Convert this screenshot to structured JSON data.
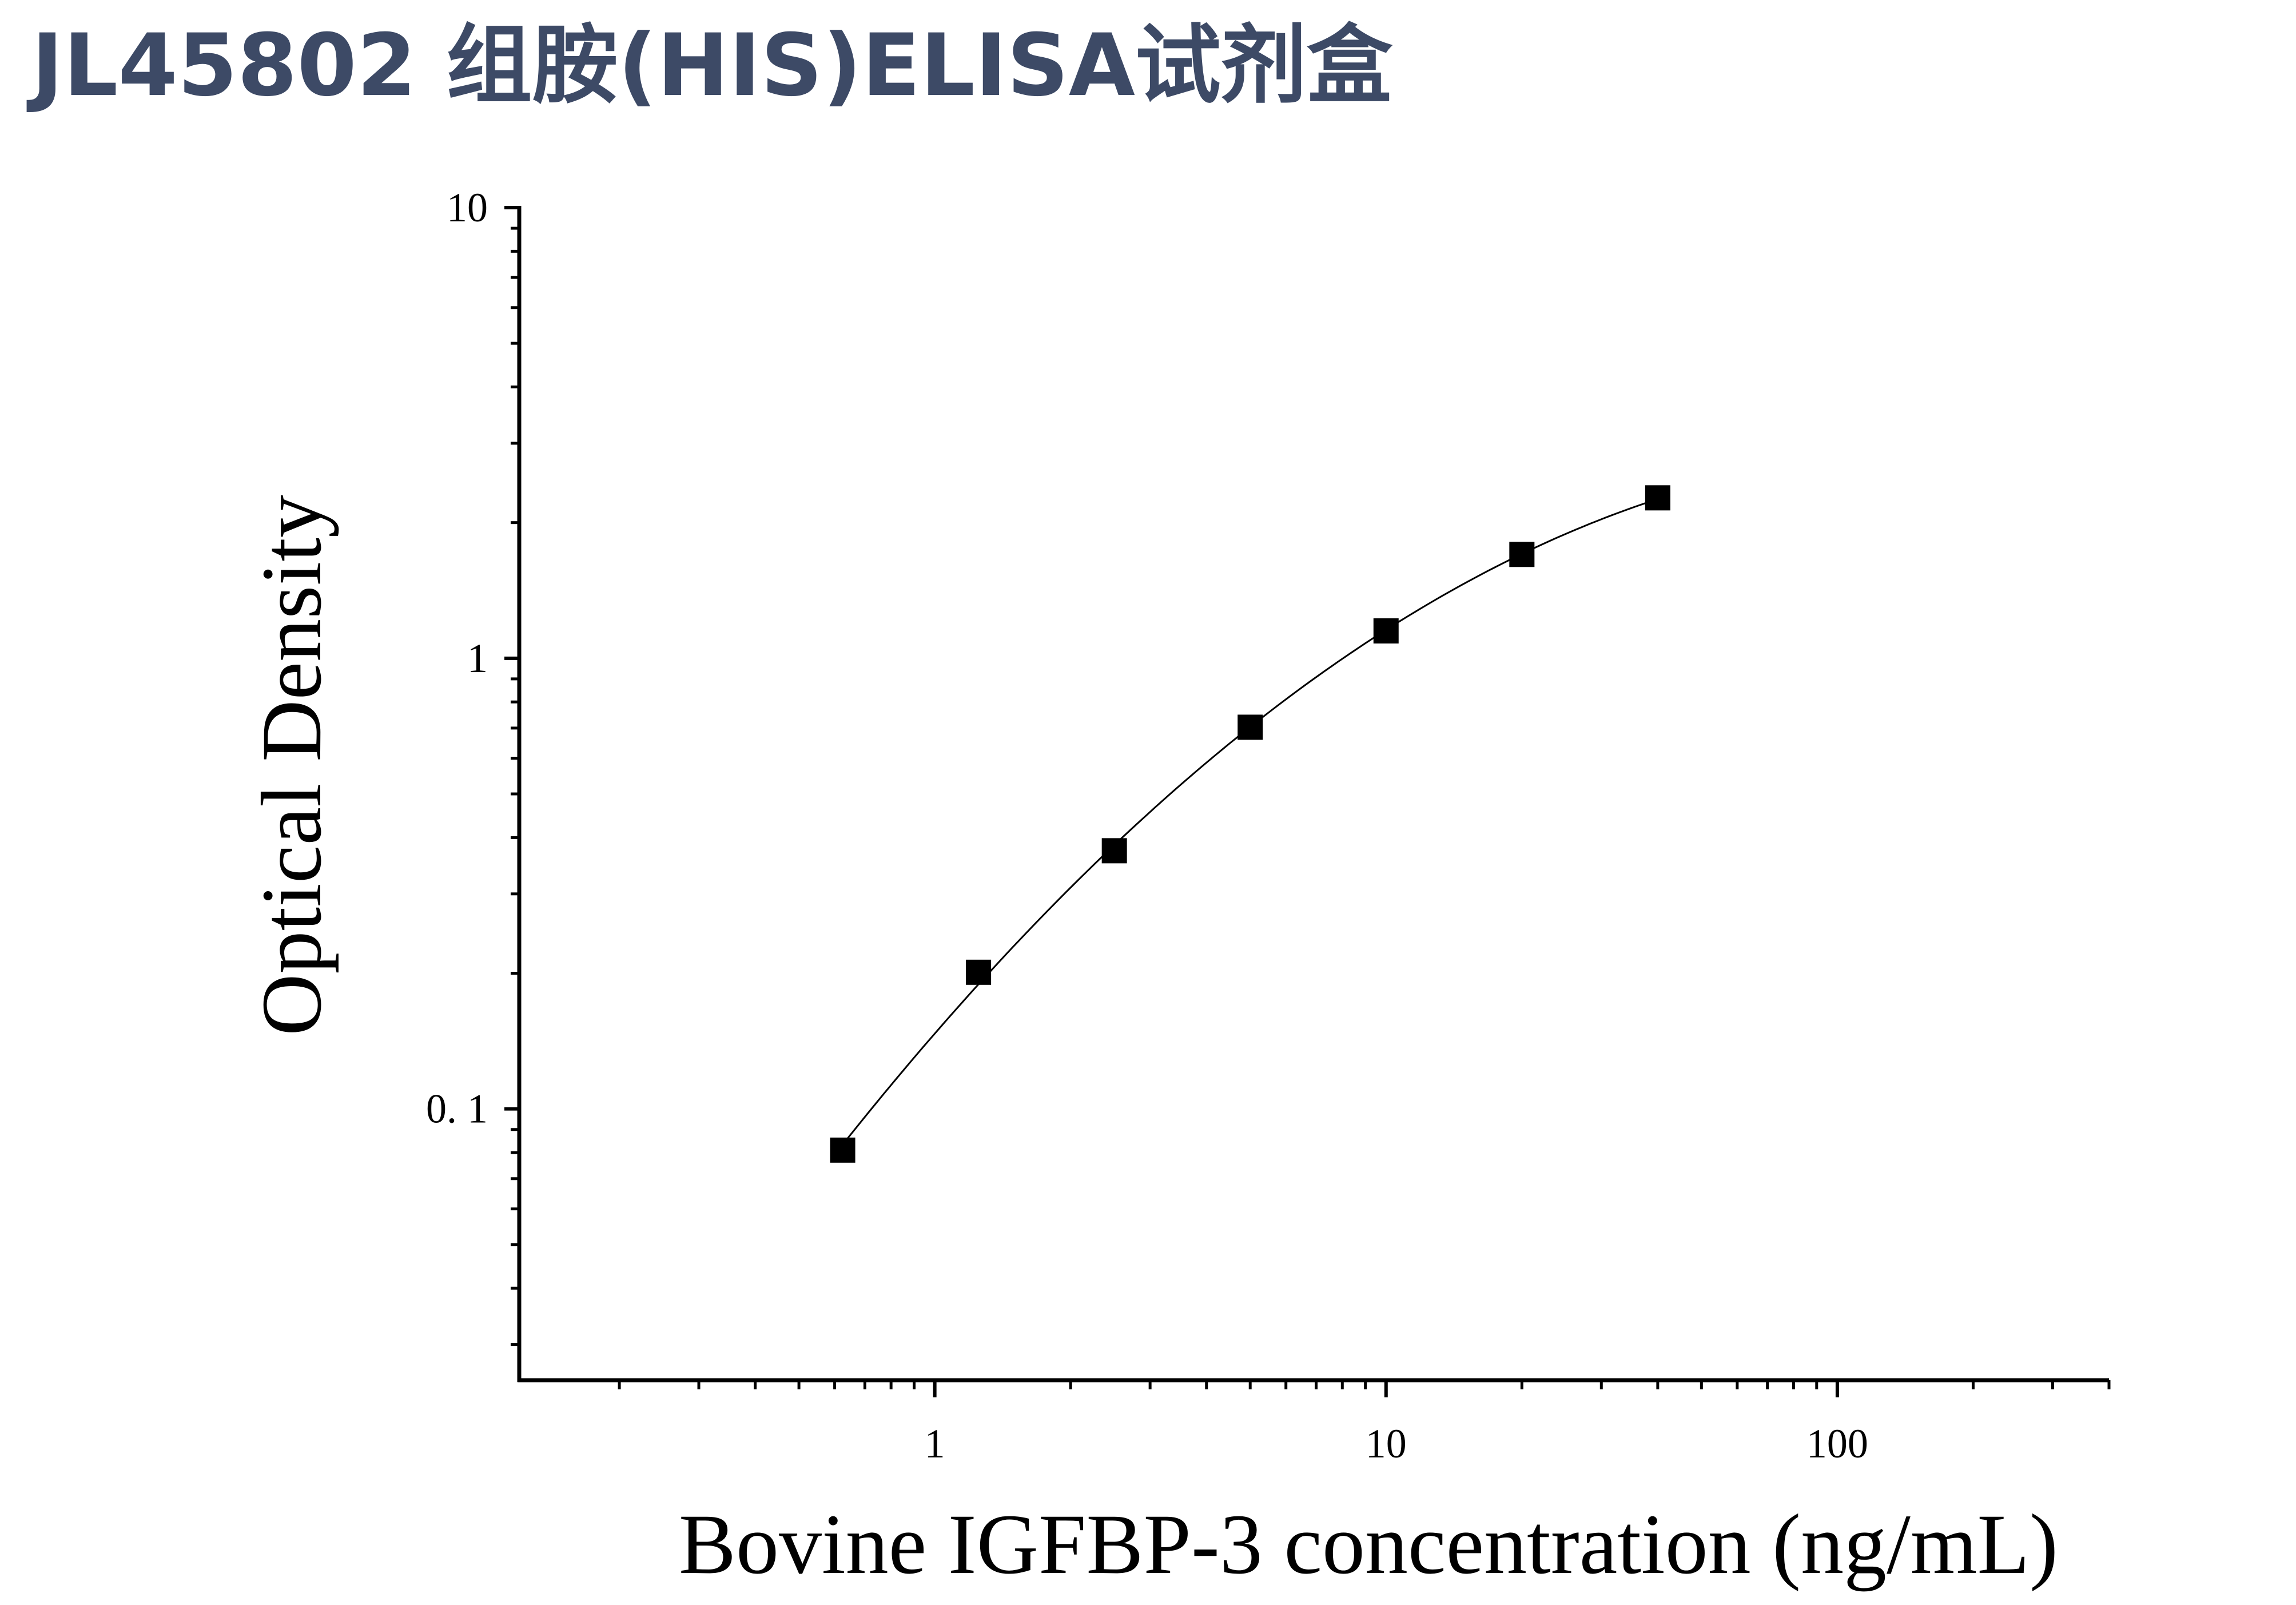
{
  "page": {
    "title": "JL45802 组胺(HIS)ELISA试剂盒"
  },
  "chart_data": {
    "type": "scatter",
    "title": "",
    "xlabel": "Bovine IGFBP-3 concentration (ng/mL)",
    "ylabel": "Optical Density",
    "x_scale": "log",
    "y_scale": "log",
    "xlim": [
      0.12,
      400
    ],
    "ylim": [
      0.025,
      10
    ],
    "x_ticks": [
      {
        "value": 1,
        "label": "1"
      },
      {
        "value": 10,
        "label": "10"
      },
      {
        "value": 100,
        "label": "100"
      }
    ],
    "y_ticks": [
      {
        "value": 0.1,
        "label": "0. 1"
      },
      {
        "value": 1,
        "label": "1"
      },
      {
        "value": 10,
        "label": "10"
      }
    ],
    "grid": false,
    "legend": "none",
    "marker": "square",
    "fit_curve": true,
    "colors": {
      "marker": "#000000",
      "curve": "#000000",
      "axis": "#000000",
      "title": "#3d4a66"
    },
    "series": [
      {
        "x": [
          0.625,
          1.25,
          2.5,
          5,
          10,
          20,
          40
        ],
        "y": [
          0.081,
          0.201,
          0.374,
          0.703,
          1.15,
          1.7,
          2.27
        ]
      }
    ]
  }
}
